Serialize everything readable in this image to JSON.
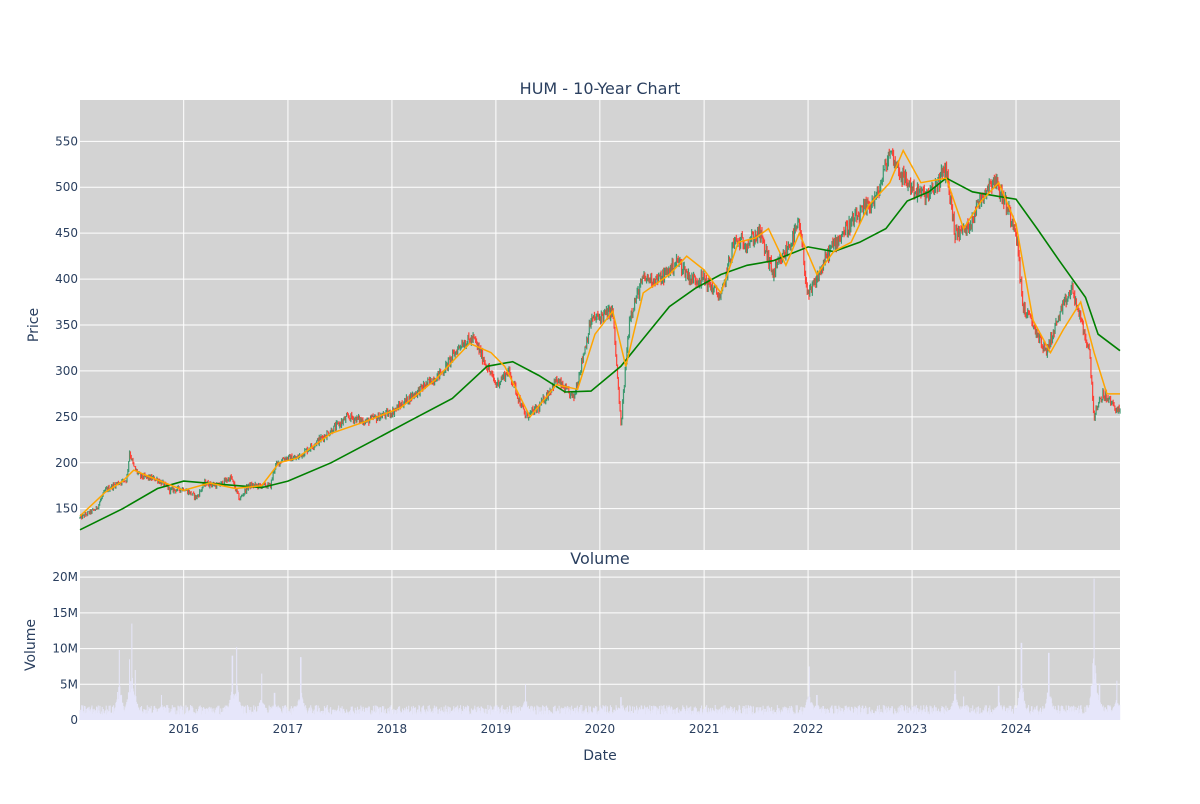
{
  "chart_data": [
    {
      "type": "candlestick",
      "title": "HUM - 10-Year Chart",
      "ylabel": "Price",
      "x_range": [
        "2015-01-02",
        "2024-12-31"
      ],
      "ylim": [
        105,
        595
      ],
      "yticks": [
        150,
        200,
        250,
        300,
        350,
        400,
        450,
        500,
        550
      ],
      "grid": true,
      "legend": "none",
      "colors": {
        "up": "#3d9970",
        "down": "#ff4136",
        "ma_short": "#ffa500",
        "ma_long": "#008000",
        "plot_bg": "#d3d3d3"
      },
      "price_anchors": [
        [
          "2015-01-02",
          140
        ],
        [
          "2015-03-01",
          150
        ],
        [
          "2015-04-01",
          170
        ],
        [
          "2015-05-15",
          178
        ],
        [
          "2015-06-15",
          182
        ],
        [
          "2015-06-25",
          212
        ],
        [
          "2015-07-10",
          195
        ],
        [
          "2015-08-01",
          185
        ],
        [
          "2015-10-01",
          182
        ],
        [
          "2015-11-15",
          170
        ],
        [
          "2016-01-01",
          172
        ],
        [
          "2016-02-15",
          162
        ],
        [
          "2016-03-15",
          178
        ],
        [
          "2016-05-01",
          175
        ],
        [
          "2016-06-15",
          184
        ],
        [
          "2016-07-15",
          160
        ],
        [
          "2016-08-15",
          175
        ],
        [
          "2016-10-01",
          175
        ],
        [
          "2016-11-01",
          175
        ],
        [
          "2016-11-15",
          195
        ],
        [
          "2016-12-15",
          205
        ],
        [
          "2017-02-01",
          205
        ],
        [
          "2017-04-01",
          220
        ],
        [
          "2017-06-01",
          235
        ],
        [
          "2017-08-01",
          250
        ],
        [
          "2017-10-01",
          245
        ],
        [
          "2018-01-01",
          255
        ],
        [
          "2018-03-01",
          270
        ],
        [
          "2018-05-01",
          285
        ],
        [
          "2018-07-01",
          300
        ],
        [
          "2018-09-01",
          330
        ],
        [
          "2018-10-15",
          335
        ],
        [
          "2018-12-01",
          305
        ],
        [
          "2019-01-01",
          285
        ],
        [
          "2019-02-15",
          300
        ],
        [
          "2019-04-15",
          250
        ],
        [
          "2019-06-01",
          260
        ],
        [
          "2019-08-01",
          290
        ],
        [
          "2019-10-01",
          270
        ],
        [
          "2019-12-01",
          355
        ],
        [
          "2020-02-15",
          365
        ],
        [
          "2020-03-15",
          240
        ],
        [
          "2020-04-15",
          360
        ],
        [
          "2020-06-01",
          400
        ],
        [
          "2020-08-01",
          400
        ],
        [
          "2020-10-01",
          420
        ],
        [
          "2020-11-15",
          400
        ],
        [
          "2021-01-01",
          400
        ],
        [
          "2021-03-01",
          380
        ],
        [
          "2021-04-15",
          440
        ],
        [
          "2021-06-01",
          440
        ],
        [
          "2021-07-15",
          450
        ],
        [
          "2021-09-01",
          405
        ],
        [
          "2021-11-01",
          440
        ],
        [
          "2021-12-01",
          460
        ],
        [
          "2022-01-01",
          380
        ],
        [
          "2022-02-01",
          400
        ],
        [
          "2022-03-15",
          430
        ],
        [
          "2022-05-01",
          450
        ],
        [
          "2022-07-01",
          470
        ],
        [
          "2022-09-01",
          490
        ],
        [
          "2022-10-15",
          540
        ],
        [
          "2022-12-01",
          510
        ],
        [
          "2023-01-15",
          495
        ],
        [
          "2023-03-01",
          490
        ],
        [
          "2023-05-01",
          520
        ],
        [
          "2023-06-01",
          450
        ],
        [
          "2023-07-15",
          455
        ],
        [
          "2023-09-01",
          490
        ],
        [
          "2023-10-15",
          510
        ],
        [
          "2023-11-15",
          490
        ],
        [
          "2024-01-01",
          455
        ],
        [
          "2024-01-25",
          370
        ],
        [
          "2024-03-01",
          350
        ],
        [
          "2024-04-15",
          320
        ],
        [
          "2024-06-01",
          360
        ],
        [
          "2024-07-15",
          390
        ],
        [
          "2024-08-15",
          355
        ],
        [
          "2024-09-15",
          320
        ],
        [
          "2024-10-01",
          250
        ],
        [
          "2024-11-01",
          275
        ],
        [
          "2024-12-31",
          255
        ]
      ],
      "ma_short_anchors": [
        [
          "2015-01-02",
          142
        ],
        [
          "2015-04-01",
          168
        ],
        [
          "2015-06-01",
          180
        ],
        [
          "2015-07-10",
          192
        ],
        [
          "2015-09-01",
          185
        ],
        [
          "2016-01-01",
          170
        ],
        [
          "2016-04-01",
          178
        ],
        [
          "2016-07-01",
          172
        ],
        [
          "2016-10-01",
          175
        ],
        [
          "2016-12-01",
          200
        ],
        [
          "2017-02-01",
          205
        ],
        [
          "2017-06-01",
          232
        ],
        [
          "2017-10-01",
          245
        ],
        [
          "2018-02-01",
          260
        ],
        [
          "2018-06-01",
          290
        ],
        [
          "2018-10-01",
          330
        ],
        [
          "2018-12-15",
          320
        ],
        [
          "2019-02-01",
          305
        ],
        [
          "2019-05-01",
          250
        ],
        [
          "2019-08-01",
          285
        ],
        [
          "2019-10-15",
          280
        ],
        [
          "2019-12-15",
          340
        ],
        [
          "2020-02-15",
          365
        ],
        [
          "2020-04-01",
          305
        ],
        [
          "2020-06-01",
          385
        ],
        [
          "2020-09-01",
          405
        ],
        [
          "2020-11-01",
          425
        ],
        [
          "2021-01-01",
          410
        ],
        [
          "2021-03-01",
          385
        ],
        [
          "2021-05-01",
          440
        ],
        [
          "2021-07-01",
          445
        ],
        [
          "2021-08-15",
          455
        ],
        [
          "2021-10-15",
          415
        ],
        [
          "2021-12-01",
          450
        ],
        [
          "2022-02-01",
          405
        ],
        [
          "2022-04-01",
          430
        ],
        [
          "2022-06-01",
          440
        ],
        [
          "2022-08-01",
          480
        ],
        [
          "2022-10-15",
          505
        ],
        [
          "2022-12-01",
          540
        ],
        [
          "2023-02-01",
          505
        ],
        [
          "2023-05-01",
          510
        ],
        [
          "2023-07-01",
          455
        ],
        [
          "2023-09-01",
          485
        ],
        [
          "2023-11-01",
          505
        ],
        [
          "2024-01-01",
          460
        ],
        [
          "2024-03-01",
          355
        ],
        [
          "2024-05-01",
          320
        ],
        [
          "2024-06-15",
          345
        ],
        [
          "2024-08-15",
          375
        ],
        [
          "2024-10-01",
          320
        ],
        [
          "2024-11-15",
          275
        ],
        [
          "2024-12-31",
          275
        ]
      ],
      "ma_long_anchors": [
        [
          "2015-01-02",
          127
        ],
        [
          "2015-06-01",
          150
        ],
        [
          "2015-10-01",
          172
        ],
        [
          "2016-01-01",
          180
        ],
        [
          "2016-06-01",
          176
        ],
        [
          "2016-10-01",
          173
        ],
        [
          "2017-01-01",
          180
        ],
        [
          "2017-06-01",
          200
        ],
        [
          "2017-11-01",
          225
        ],
        [
          "2018-03-01",
          245
        ],
        [
          "2018-08-01",
          270
        ],
        [
          "2018-12-01",
          305
        ],
        [
          "2019-03-01",
          310
        ],
        [
          "2019-06-01",
          295
        ],
        [
          "2019-09-01",
          277
        ],
        [
          "2019-12-01",
          278
        ],
        [
          "2020-03-15",
          305
        ],
        [
          "2020-06-01",
          335
        ],
        [
          "2020-09-01",
          370
        ],
        [
          "2020-12-01",
          390
        ],
        [
          "2021-03-01",
          405
        ],
        [
          "2021-06-01",
          415
        ],
        [
          "2021-09-01",
          420
        ],
        [
          "2022-01-01",
          435
        ],
        [
          "2022-04-01",
          430
        ],
        [
          "2022-07-01",
          440
        ],
        [
          "2022-10-01",
          455
        ],
        [
          "2022-12-15",
          485
        ],
        [
          "2023-03-01",
          495
        ],
        [
          "2023-05-01",
          510
        ],
        [
          "2023-08-01",
          495
        ],
        [
          "2023-11-01",
          490
        ],
        [
          "2024-01-01",
          487
        ],
        [
          "2024-03-15",
          455
        ],
        [
          "2024-06-01",
          420
        ],
        [
          "2024-09-01",
          380
        ],
        [
          "2024-10-15",
          340
        ],
        [
          "2024-12-31",
          322
        ]
      ]
    },
    {
      "type": "bar",
      "title": "Volume",
      "ylabel": "Volume",
      "xlabel": "Date",
      "ylim": [
        0,
        21000000
      ],
      "yticks": [
        {
          "value": 0,
          "label": "0"
        },
        {
          "value": 5000000,
          "label": "5M"
        },
        {
          "value": 10000000,
          "label": "10M"
        },
        {
          "value": 15000000,
          "label": "15M"
        },
        {
          "value": 20000000,
          "label": "20M"
        }
      ],
      "xticks": [
        {
          "date": "2016-01-01",
          "label": "2016"
        },
        {
          "date": "2017-01-01",
          "label": "2017"
        },
        {
          "date": "2018-01-01",
          "label": "2018"
        },
        {
          "date": "2019-01-01",
          "label": "2019"
        },
        {
          "date": "2020-01-01",
          "label": "2020"
        },
        {
          "date": "2021-01-01",
          "label": "2021"
        },
        {
          "date": "2022-01-01",
          "label": "2022"
        },
        {
          "date": "2023-01-01",
          "label": "2023"
        },
        {
          "date": "2024-01-01",
          "label": "2024"
        }
      ],
      "grid": true,
      "bar_color": "#e6e6fa",
      "base_volume": 1500000,
      "volume_spikes": [
        [
          "2015-05-20",
          9800000
        ],
        [
          "2015-06-25",
          8500000
        ],
        [
          "2015-07-03",
          13500000
        ],
        [
          "2015-07-15",
          7000000
        ],
        [
          "2015-10-15",
          3500000
        ],
        [
          "2016-06-20",
          9000000
        ],
        [
          "2016-07-05",
          10200000
        ],
        [
          "2016-10-01",
          6500000
        ],
        [
          "2016-11-15",
          3800000
        ],
        [
          "2017-02-15",
          8800000
        ],
        [
          "2019-04-15",
          5000000
        ],
        [
          "2020-03-15",
          3200000
        ],
        [
          "2022-01-05",
          7500000
        ],
        [
          "2022-02-01",
          3500000
        ],
        [
          "2023-06-01",
          6900000
        ],
        [
          "2023-07-01",
          3300000
        ],
        [
          "2023-11-01",
          4800000
        ],
        [
          "2024-01-20",
          10800000
        ],
        [
          "2024-04-25",
          9400000
        ],
        [
          "2024-10-01",
          19800000
        ],
        [
          "2024-10-20",
          5100000
        ],
        [
          "2024-12-20",
          5500000
        ]
      ]
    }
  ]
}
